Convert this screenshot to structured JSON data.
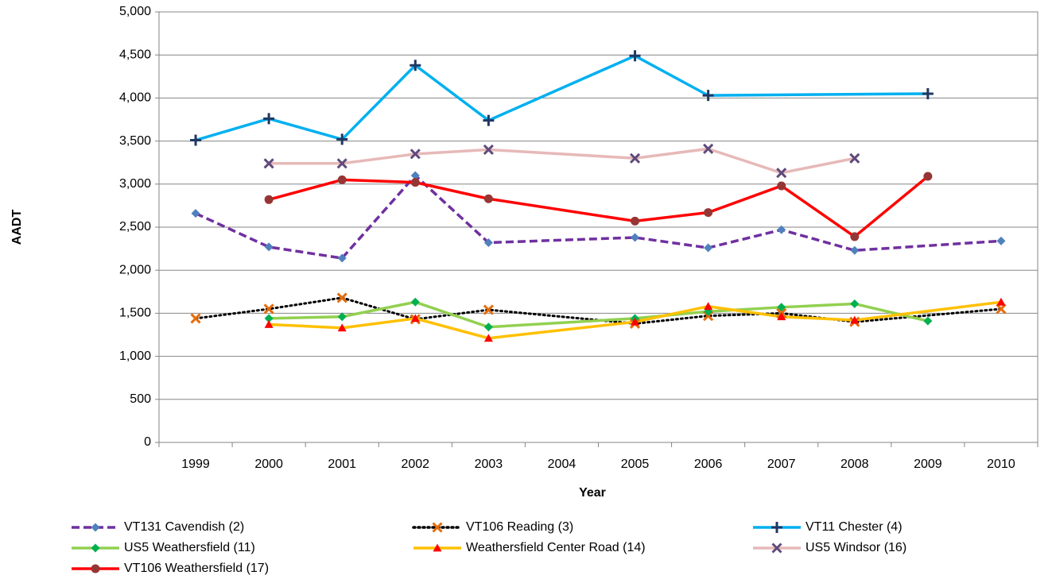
{
  "chart_data": {
    "type": "line",
    "x_label": "Year",
    "y_label": "AADT",
    "categories": [
      "1999",
      "2000",
      "2001",
      "2002",
      "2003",
      "2004",
      "2005",
      "2006",
      "2007",
      "2008",
      "2009",
      "2010"
    ],
    "ylim": [
      0,
      5000
    ],
    "yticks": [
      0,
      500,
      {
        "value": 1000,
        "label": "1,000"
      },
      {
        "value": 1500,
        "label": "1,500"
      },
      {
        "value": 2000,
        "label": "2,000"
      },
      {
        "value": 2500,
        "label": "2,500"
      },
      {
        "value": 3000,
        "label": "3,000"
      },
      {
        "value": 3500,
        "label": "3,500"
      },
      {
        "value": 4000,
        "label": "4,000"
      },
      {
        "value": 4500,
        "label": "4,500"
      },
      {
        "value": 5000,
        "label": "5,000"
      }
    ],
    "grid": true,
    "span_gaps": true,
    "legend": "bottom",
    "series": [
      {
        "name": "VT131 Cavendish (2)",
        "color": "#7030a0",
        "marker_color": "#4f81bd",
        "marker": "diamond",
        "dash": "dashed",
        "values": [
          2660,
          2270,
          2140,
          3100,
          2320,
          null,
          2380,
          2260,
          2470,
          2230,
          null,
          2340
        ]
      },
      {
        "name": "VT106 Reading (3)",
        "color": "#000000",
        "marker_color": "#e46c0a",
        "marker": "x",
        "dash": "dotted",
        "values": [
          1440,
          1550,
          1680,
          1430,
          1540,
          null,
          1380,
          1470,
          1500,
          1400,
          null,
          1550
        ]
      },
      {
        "name": "VT11 Chester (4)",
        "color": "#00b0f0",
        "marker_color": "#1f3864",
        "marker": "plus",
        "dash": "solid",
        "values": [
          3510,
          3760,
          3520,
          4380,
          3740,
          null,
          4490,
          4030,
          null,
          null,
          4050,
          null
        ]
      },
      {
        "name": "US5 Weathersfield (11)",
        "color": "#92d050",
        "marker_color": "#00b050",
        "marker": "diamond",
        "dash": "solid",
        "values": [
          null,
          1440,
          1460,
          1630,
          1340,
          null,
          1440,
          1520,
          1570,
          1610,
          1410,
          null
        ]
      },
      {
        "name": "Weathersfield Center Road (14)",
        "color": "#ffc000",
        "marker_color": "#ff0000",
        "marker": "triangle",
        "dash": "solid",
        "values": [
          null,
          1370,
          1330,
          1440,
          1210,
          null,
          1400,
          1580,
          1460,
          1420,
          null,
          1630
        ]
      },
      {
        "name": "US5 Windsor (16)",
        "color": "#e6b9b8",
        "marker_color": "#604a7b",
        "marker": "x",
        "dash": "solid",
        "values": [
          null,
          3240,
          3240,
          3350,
          3400,
          null,
          3300,
          3410,
          3130,
          3300,
          null,
          null
        ]
      },
      {
        "name": "VT106 Weathersfield (17)",
        "color": "#ff0000",
        "marker_color": "#963634",
        "marker": "circle",
        "dash": "solid",
        "values": [
          null,
          2820,
          3050,
          3020,
          2830,
          null,
          2570,
          2670,
          2980,
          2390,
          3090,
          null
        ]
      }
    ]
  }
}
